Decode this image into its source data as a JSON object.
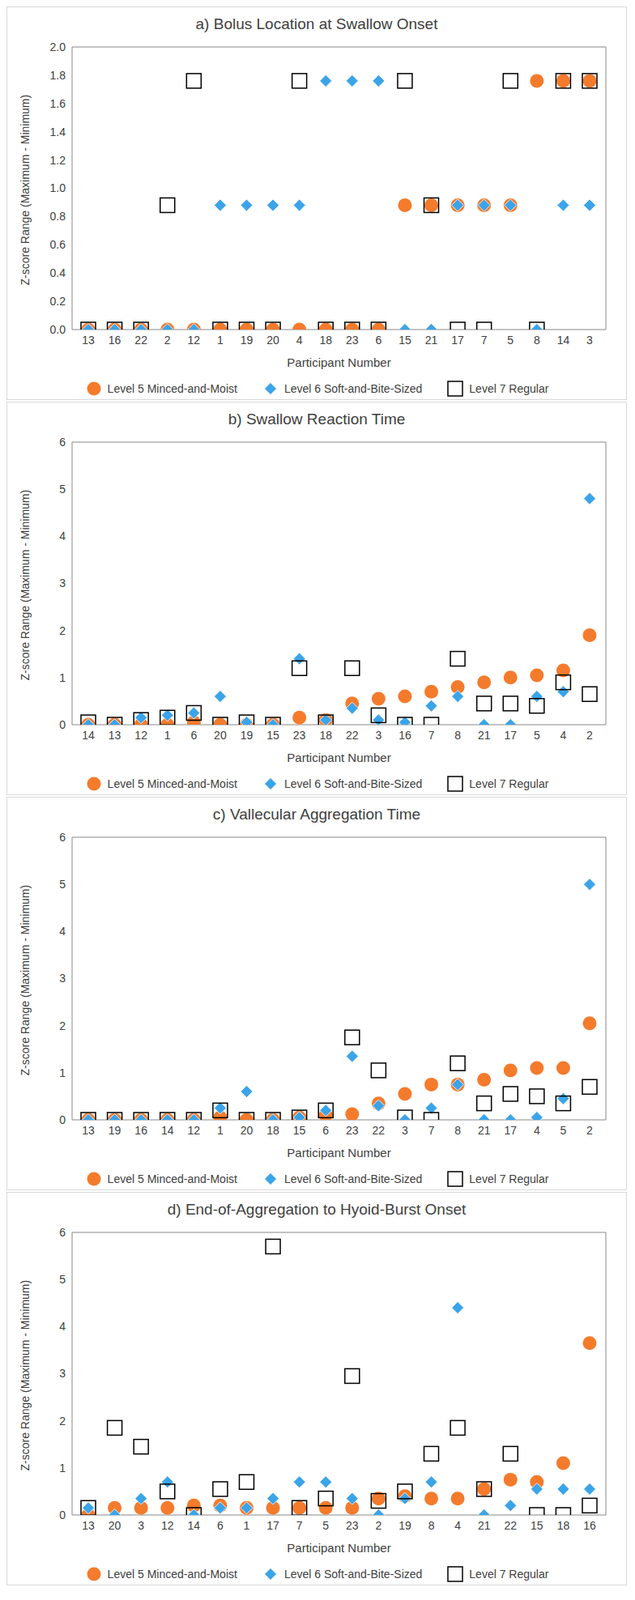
{
  "chart_data": [
    {
      "type": "scatter",
      "title": "a) Bolus Location at Swallow Onset",
      "x_label": "Participant Number",
      "y_label": "Z-score Range (Maximum - Minimum)",
      "grid": false,
      "legend": "bottom",
      "categories": [
        "13",
        "16",
        "22",
        "2",
        "12",
        "1",
        "19",
        "20",
        "4",
        "18",
        "23",
        "6",
        "15",
        "21",
        "17",
        "7",
        "5",
        "8",
        "14",
        "3"
      ],
      "ylim": [
        0,
        2
      ],
      "yticks": [
        {
          "value": 0,
          "label": "0.0"
        },
        {
          "value": 0.2,
          "label": "0.2"
        },
        {
          "value": 0.4,
          "label": "0.4"
        },
        {
          "value": 0.6,
          "label": "0.6"
        },
        {
          "value": 0.8,
          "label": "0.8"
        },
        {
          "value": 1,
          "label": "1.0"
        },
        {
          "value": 1.2,
          "label": "1.2"
        },
        {
          "value": 1.4,
          "label": "1.4"
        },
        {
          "value": 1.6,
          "label": "1.6"
        },
        {
          "value": 1.8,
          "label": "1.8"
        },
        {
          "value": 2,
          "label": "2.0"
        }
      ],
      "series": [
        {
          "name": "Level 5 Minced-and-Moist",
          "color": "#f47b2c",
          "marker": "circle",
          "values": [
            0,
            0,
            0,
            0,
            0,
            0,
            0,
            0,
            0,
            0,
            0,
            0,
            0.88,
            0.88,
            0.88,
            0.88,
            0.88,
            1.76,
            1.76,
            1.76
          ]
        },
        {
          "name": "Level 6 Soft-and-Bite-Sized",
          "color": "#3ba4e9",
          "marker": "diamond",
          "values": [
            0,
            0,
            0,
            0,
            0,
            0.88,
            0.88,
            0.88,
            0.88,
            1.76,
            1.76,
            1.76,
            0,
            0,
            0.88,
            0.88,
            0.88,
            0,
            0.88,
            0.88
          ]
        },
        {
          "name": "Level 7 Regular",
          "color": "#000000",
          "marker": "hollow-square",
          "values": [
            0,
            0,
            0,
            0.88,
            1.76,
            0,
            0,
            0,
            1.76,
            0,
            0,
            0,
            1.76,
            0.88,
            0,
            0,
            1.76,
            0,
            1.76,
            1.76
          ]
        }
      ]
    },
    {
      "type": "scatter",
      "title": "b) Swallow Reaction Time",
      "x_label": "Participant Number",
      "y_label": "Z-score Range (Maximum - Minimum)",
      "grid": false,
      "legend": "bottom",
      "categories": [
        "14",
        "13",
        "12",
        "1",
        "6",
        "20",
        "19",
        "15",
        "23",
        "18",
        "22",
        "3",
        "16",
        "7",
        "8",
        "21",
        "17",
        "5",
        "4",
        "2"
      ],
      "ylim": [
        0,
        6
      ],
      "yticks": [
        0,
        1,
        2,
        3,
        4,
        5,
        6
      ],
      "series": [
        {
          "name": "Level 5 Minced-and-Moist",
          "color": "#f47b2c",
          "marker": "circle",
          "values": [
            0,
            0,
            0,
            0,
            0.05,
            0,
            0,
            0,
            0.15,
            0.1,
            0.45,
            0.55,
            0.6,
            0.7,
            0.8,
            0.9,
            1.0,
            1.05,
            1.15,
            1.9
          ]
        },
        {
          "name": "Level 6 Soft-and-Bite-Sized",
          "color": "#3ba4e9",
          "marker": "diamond",
          "values": [
            0,
            0,
            0.15,
            0.2,
            0.25,
            0.6,
            0.05,
            0,
            1.4,
            0.1,
            0.35,
            0.1,
            0.05,
            0.4,
            0.6,
            0,
            0,
            0.6,
            0.7,
            4.8
          ]
        },
        {
          "name": "Level 7 Regular",
          "color": "#000000",
          "marker": "hollow-square",
          "values": [
            0.05,
            0,
            0.1,
            0.15,
            0.25,
            0,
            0.05,
            0,
            1.2,
            0.05,
            1.2,
            0.2,
            0,
            0,
            1.4,
            0.45,
            0.45,
            0.4,
            0.9,
            0.65
          ]
        }
      ]
    },
    {
      "type": "scatter",
      "title": "c) Vallecular Aggregation Time",
      "x_label": "Participant Number",
      "y_label": "Z-score Range (Maximum - Minimum)",
      "grid": false,
      "legend": "bottom",
      "categories": [
        "13",
        "19",
        "16",
        "14",
        "12",
        "1",
        "20",
        "18",
        "15",
        "6",
        "23",
        "22",
        "3",
        "7",
        "8",
        "21",
        "17",
        "4",
        "5",
        "2"
      ],
      "ylim": [
        0,
        6
      ],
      "yticks": [
        0,
        1,
        2,
        3,
        4,
        5,
        6
      ],
      "series": [
        {
          "name": "Level 5 Minced-and-Moist",
          "color": "#f47b2c",
          "marker": "circle",
          "values": [
            0,
            0,
            0,
            0,
            0,
            0.05,
            0,
            0,
            0.05,
            0.1,
            0.12,
            0.35,
            0.55,
            0.75,
            0.75,
            0.85,
            1.05,
            1.1,
            1.1,
            2.05
          ]
        },
        {
          "name": "Level 6 Soft-and-Bite-Sized",
          "color": "#3ba4e9",
          "marker": "diamond",
          "values": [
            0,
            0,
            0,
            0,
            0,
            0.25,
            0.6,
            0,
            0.05,
            0.2,
            1.35,
            0.3,
            0,
            0.25,
            0.75,
            0,
            0,
            0.05,
            0.45,
            5.0
          ]
        },
        {
          "name": "Level 7 Regular",
          "color": "#000000",
          "marker": "hollow-square",
          "values": [
            0,
            0,
            0,
            0,
            0,
            0.2,
            0,
            0,
            0.05,
            0.2,
            1.75,
            1.05,
            0.05,
            0,
            1.2,
            0.35,
            0.55,
            0.5,
            0.35,
            0.7
          ]
        }
      ]
    },
    {
      "type": "scatter",
      "title": "d) End-of-Aggregation to Hyoid-Burst Onset",
      "x_label": "Participant Number",
      "y_label": "Z-score Range (Maximum - Minimum)",
      "grid": false,
      "legend": "bottom",
      "categories": [
        "13",
        "20",
        "3",
        "12",
        "14",
        "6",
        "1",
        "17",
        "7",
        "5",
        "23",
        "2",
        "19",
        "8",
        "4",
        "21",
        "22",
        "15",
        "18",
        "16"
      ],
      "ylim": [
        0,
        6
      ],
      "yticks": [
        0,
        1,
        2,
        3,
        4,
        5,
        6
      ],
      "series": [
        {
          "name": "Level 5 Minced-and-Moist",
          "color": "#f47b2c",
          "marker": "circle",
          "values": [
            0,
            0.15,
            0.15,
            0.15,
            0.2,
            0.2,
            0.15,
            0.15,
            0.15,
            0.15,
            0.15,
            0.35,
            0.4,
            0.35,
            0.35,
            0.55,
            0.75,
            0.7,
            1.1,
            3.65
          ]
        },
        {
          "name": "Level 6 Soft-and-Bite-Sized",
          "color": "#3ba4e9",
          "marker": "diamond",
          "values": [
            0.15,
            0,
            0.35,
            0.7,
            0,
            0.15,
            0.15,
            0.35,
            0.7,
            0.7,
            0.35,
            0,
            0.35,
            0.7,
            4.4,
            0,
            0.2,
            0.55,
            0.55,
            0.55
          ]
        },
        {
          "name": "Level 7 Regular",
          "color": "#000000",
          "marker": "hollow-square",
          "values": [
            0.15,
            1.85,
            1.45,
            0.5,
            0,
            0.55,
            0.7,
            5.7,
            0.15,
            0.35,
            2.95,
            0.3,
            0.5,
            1.3,
            1.85,
            0.55,
            1.3,
            0,
            0,
            0.2
          ]
        }
      ]
    }
  ]
}
